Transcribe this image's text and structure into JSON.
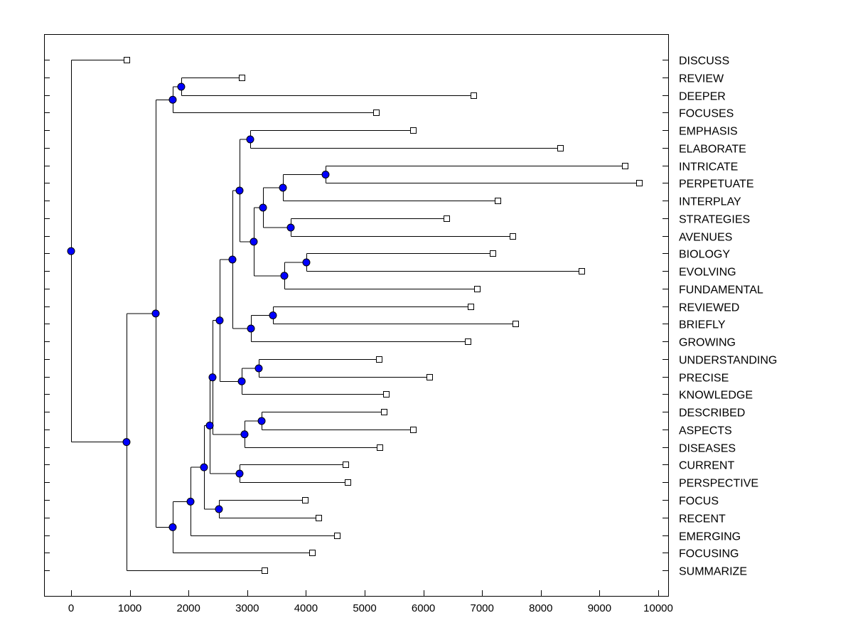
{
  "chart_data": {
    "type": "dendrogram",
    "title": "",
    "xlabel": "",
    "ylabel": "",
    "xlim": [
      -500,
      10000
    ],
    "xticks": [
      0,
      1000,
      2000,
      3000,
      4000,
      5000,
      6000,
      7000,
      8000,
      9000,
      10000
    ],
    "xtick_labels": [
      "0",
      "1000",
      "2000",
      "3000",
      "4000",
      "5000",
      "6000",
      "7000",
      "8000",
      "9000",
      "10000"
    ],
    "node_color": "#0000ff",
    "leaves": [
      {
        "id": "DISCUSS",
        "label": "DISCUSS",
        "value": 944
      },
      {
        "id": "REVIEW",
        "label": "REVIEW",
        "value": 2906
      },
      {
        "id": "DEEPER",
        "label": "DEEPER",
        "value": 6852
      },
      {
        "id": "FOCUSES",
        "label": "FOCUSES",
        "value": 5194
      },
      {
        "id": "EMPHASIS",
        "label": "EMPHASIS",
        "value": 5823
      },
      {
        "id": "ELABORATE",
        "label": "ELABORATE",
        "value": 8329
      },
      {
        "id": "INTRICATE",
        "label": "INTRICATE",
        "value": 9431
      },
      {
        "id": "PERPETUATE",
        "label": "PERPETUATE",
        "value": 9673
      },
      {
        "id": "INTERPLAY",
        "label": "INTERPLAY",
        "value": 7264
      },
      {
        "id": "STRATEGIES",
        "label": "STRATEGIES",
        "value": 6392
      },
      {
        "id": "AVENUES",
        "label": "AVENUES",
        "value": 7518
      },
      {
        "id": "BIOLOGY",
        "label": "BIOLOGY",
        "value": 7179
      },
      {
        "id": "EVOLVING",
        "label": "EVOLVING",
        "value": 8692
      },
      {
        "id": "FUNDAMENTAL",
        "label": "FUNDAMENTAL",
        "value": 6913
      },
      {
        "id": "REVIEWED",
        "label": "REVIEWED",
        "value": 6804
      },
      {
        "id": "BRIEFLY",
        "label": "BRIEFLY",
        "value": 7567
      },
      {
        "id": "GROWING",
        "label": "GROWING",
        "value": 6755
      },
      {
        "id": "UNDERSTANDING",
        "label": "UNDERSTANDING",
        "value": 5242
      },
      {
        "id": "PRECISE",
        "label": "PRECISE",
        "value": 6102
      },
      {
        "id": "KNOWLEDGE",
        "label": "KNOWLEDGE",
        "value": 5363
      },
      {
        "id": "DESCRIBED",
        "label": "DESCRIBED",
        "value": 5327
      },
      {
        "id": "ASPECTS",
        "label": "ASPECTS",
        "value": 5823
      },
      {
        "id": "DISEASES",
        "label": "DISEASES",
        "value": 5254
      },
      {
        "id": "CURRENT",
        "label": "CURRENT",
        "value": 4673
      },
      {
        "id": "PERSPECTIVE",
        "label": "PERSPECTIVE",
        "value": 4709
      },
      {
        "id": "FOCUS",
        "label": "FOCUS",
        "value": 3983
      },
      {
        "id": "RECENT",
        "label": "RECENT",
        "value": 4213
      },
      {
        "id": "EMERGING",
        "label": "EMERGING",
        "value": 4528
      },
      {
        "id": "FOCUSING",
        "label": "FOCUSING",
        "value": 4104
      },
      {
        "id": "SUMMARIZE",
        "label": "SUMMARIZE",
        "value": 3293
      }
    ],
    "nodes": [
      {
        "id": "root",
        "value": 0,
        "children": [
          "DISCUSS",
          "n1"
        ]
      },
      {
        "id": "n1",
        "value": 944,
        "children": [
          "n2",
          "SUMMARIZE"
        ]
      },
      {
        "id": "n2",
        "value": 1441,
        "children": [
          "n3",
          "n5"
        ]
      },
      {
        "id": "n3",
        "value": 1731,
        "children": [
          "n4",
          "FOCUSES"
        ]
      },
      {
        "id": "n4",
        "value": 1876,
        "children": [
          "REVIEW",
          "DEEPER"
        ]
      },
      {
        "id": "n5",
        "value": 1731,
        "children": [
          "n6",
          "FOCUSING"
        ]
      },
      {
        "id": "n6",
        "value": 2034,
        "children": [
          "n7",
          "EMERGING"
        ]
      },
      {
        "id": "n7",
        "value": 2264,
        "children": [
          "n8",
          "n9"
        ]
      },
      {
        "id": "n9",
        "value": 2518,
        "children": [
          "FOCUS",
          "RECENT"
        ]
      },
      {
        "id": "n8",
        "value": 2361,
        "children": [
          "n10",
          "n11"
        ]
      },
      {
        "id": "n11",
        "value": 2869,
        "children": [
          "CURRENT",
          "PERSPECTIVE"
        ]
      },
      {
        "id": "n10",
        "value": 2409,
        "children": [
          "n12",
          "n13"
        ]
      },
      {
        "id": "n13",
        "value": 2954,
        "children": [
          "n14",
          "DISEASES"
        ]
      },
      {
        "id": "n14",
        "value": 3245,
        "children": [
          "DESCRIBED",
          "ASPECTS"
        ]
      },
      {
        "id": "n12",
        "value": 2530,
        "children": [
          "n15",
          "n16"
        ]
      },
      {
        "id": "n16",
        "value": 2906,
        "children": [
          "n17",
          "KNOWLEDGE"
        ]
      },
      {
        "id": "n17",
        "value": 3196,
        "children": [
          "UNDERSTANDING",
          "PRECISE"
        ]
      },
      {
        "id": "n15",
        "value": 2748,
        "children": [
          "n18",
          "n19"
        ]
      },
      {
        "id": "n19",
        "value": 3063,
        "children": [
          "n20",
          "GROWING"
        ]
      },
      {
        "id": "n20",
        "value": 3438,
        "children": [
          "REVIEWED",
          "BRIEFLY"
        ]
      },
      {
        "id": "n18",
        "value": 2869,
        "children": [
          "n21",
          "n22"
        ]
      },
      {
        "id": "n21",
        "value": 3051,
        "children": [
          "EMPHASIS",
          "ELABORATE"
        ]
      },
      {
        "id": "n22",
        "value": 3111,
        "children": [
          "n23",
          "n24"
        ]
      },
      {
        "id": "n24",
        "value": 3632,
        "children": [
          "n25",
          "FUNDAMENTAL"
        ]
      },
      {
        "id": "n25",
        "value": 4007,
        "children": [
          "BIOLOGY",
          "EVOLVING"
        ]
      },
      {
        "id": "n23",
        "value": 3269,
        "children": [
          "n26",
          "n27"
        ]
      },
      {
        "id": "n26",
        "value": 3608,
        "children": [
          "n28",
          "INTERPLAY"
        ]
      },
      {
        "id": "n28",
        "value": 4334,
        "children": [
          "INTRICATE",
          "PERPETUATE"
        ]
      },
      {
        "id": "n27",
        "value": 3741,
        "children": [
          "STRATEGIES",
          "AVENUES"
        ]
      }
    ]
  }
}
